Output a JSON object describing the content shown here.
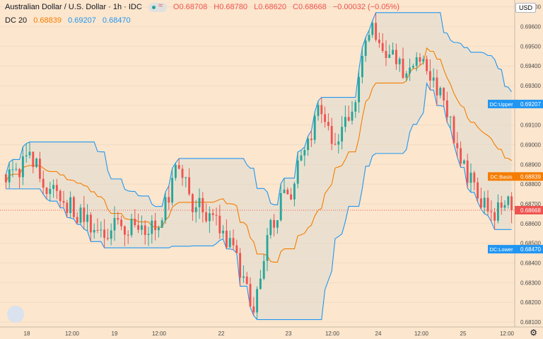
{
  "header": {
    "symbol": "Australian Dollar / U.S. Dollar · 1h · IDC",
    "open": "O0.68708",
    "high": "H0.68780",
    "low": "L0.68620",
    "close": "C0.68668",
    "change": "−0.00032 (−0.05%)"
  },
  "indicator": {
    "name": "DC 20",
    "v1": "0.68839",
    "v2": "0.69207",
    "v3": "0.68470"
  },
  "currency": "USD",
  "chart_data": {
    "type": "candlestick",
    "y_ticks": [
      0.697,
      0.696,
      0.695,
      0.694,
      0.693,
      0.692,
      0.691,
      0.69,
      0.689,
      0.688,
      0.687,
      0.686,
      0.685,
      0.684,
      0.683,
      0.682,
      0.681
    ],
    "ylim": [
      0.68075,
      0.69735
    ],
    "x_ticks": [
      "18",
      "12:00",
      "19",
      "12:00",
      "22",
      "23",
      "12:00",
      "24",
      "12:00",
      "25",
      "12:00"
    ],
    "labels": {
      "upper": "DC:Upper",
      "upper_value": "0.69207",
      "basis": "DC:Basis",
      "basis_value": "0.68839",
      "price_value": "0.68668",
      "lower": "DC:Lower",
      "lower_value": "0.68470"
    },
    "last_price": 0.68668,
    "colors": {
      "up": "#26a69a",
      "down": "#ef5350",
      "channel": "#2196f3",
      "basis": "#f57c00",
      "fill": "#2196f3"
    },
    "seed": 20481
  }
}
